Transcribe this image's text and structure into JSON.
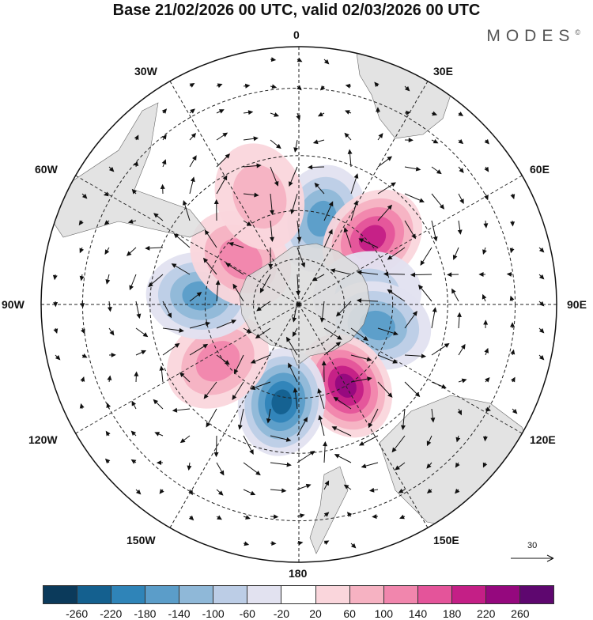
{
  "title": "Base 21/02/2026 00 UTC, valid 02/03/2026 00 UTC",
  "brand": "MODES",
  "brand_mark": "©",
  "longitude_labels": [
    "0",
    "30E",
    "60E",
    "90E",
    "120E",
    "150E",
    "180",
    "150W",
    "120W",
    "90W",
    "60W",
    "30W"
  ],
  "reference_vector": {
    "value": "30",
    "icon": "arrow-right-icon"
  },
  "colorbar": {
    "ticks": [
      "-260",
      "-220",
      "-180",
      "-140",
      "-100",
      "-60",
      "-20",
      "20",
      "60",
      "100",
      "140",
      "180",
      "220",
      "260"
    ],
    "colors": [
      "#0b3a5b",
      "#14608f",
      "#2f84b8",
      "#5b9dc9",
      "#8fb8d8",
      "#bccde6",
      "#e2e2f0",
      "#ffffff",
      "#fad6dc",
      "#f6b2c2",
      "#f186ad",
      "#e4549a",
      "#c41f86",
      "#95087e",
      "#5e076f"
    ]
  },
  "chart_data": {
    "type": "heatmap",
    "projection": "south polar stereographic",
    "title": "Base 21/02/2026 00 UTC, valid 02/03/2026 00 UTC",
    "variable_units": "anomaly contours with wind vectors (reference vector 30)",
    "levels": [
      -260,
      -220,
      -180,
      -140,
      -100,
      -60,
      -20,
      20,
      60,
      100,
      140,
      180,
      220,
      260
    ],
    "anomaly_centers": [
      {
        "lon": 15,
        "lat": -52,
        "sign": "negative",
        "peak": -160
      },
      {
        "lon": 48,
        "lat": -48,
        "sign": "positive",
        "peak": 200
      },
      {
        "lon": 82,
        "lat": -60,
        "sign": "negative",
        "peak": -60
      },
      {
        "lon": 105,
        "lat": -55,
        "sign": "negative",
        "peak": -160
      },
      {
        "lon": 150,
        "lat": -50,
        "sign": "positive",
        "peak": 240
      },
      {
        "lon": -170,
        "lat": -48,
        "sign": "negative",
        "peak": -240
      },
      {
        "lon": -125,
        "lat": -48,
        "sign": "positive",
        "peak": 120
      },
      {
        "lon": -85,
        "lat": -48,
        "sign": "negative",
        "peak": -140
      },
      {
        "lon": -52,
        "lat": -58,
        "sign": "positive",
        "peak": 120
      },
      {
        "lon": -20,
        "lat": -42,
        "sign": "positive",
        "peak": 80
      }
    ]
  }
}
